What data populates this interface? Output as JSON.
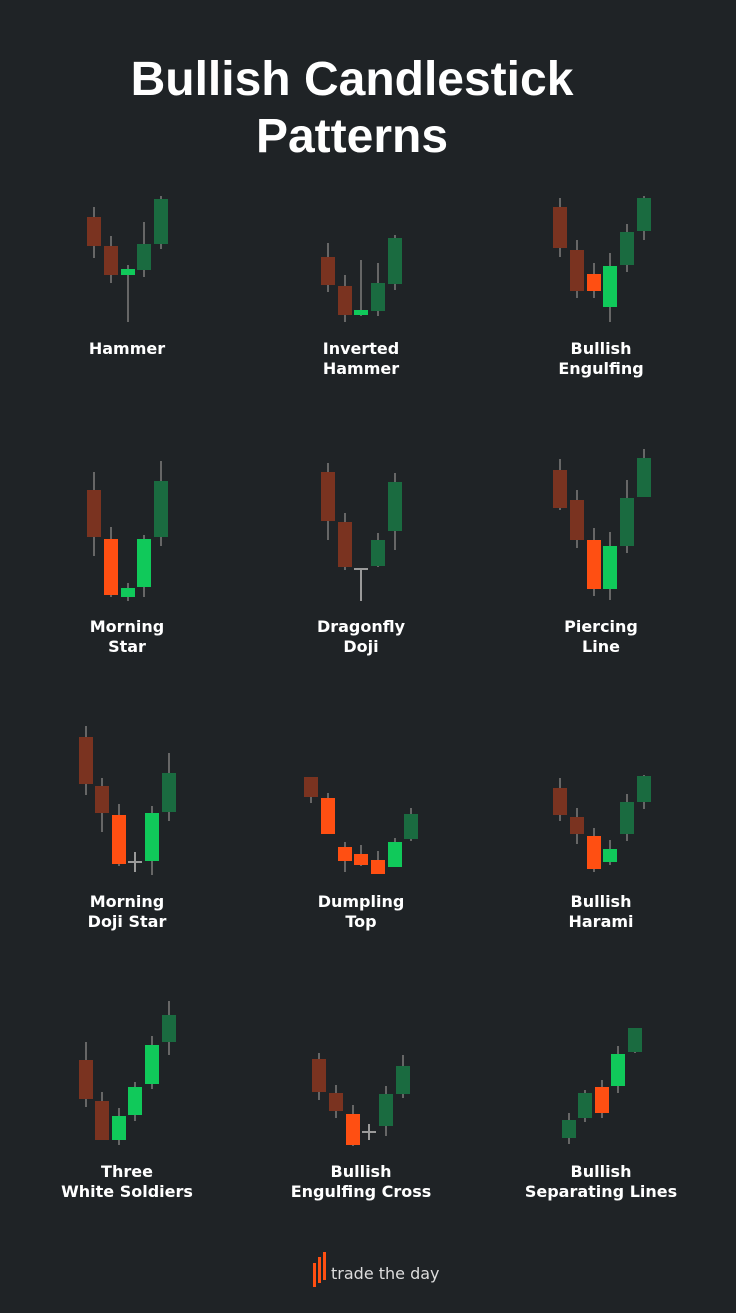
{
  "title": {
    "lines": [
      "Bullish Candlestick",
      "Patterns"
    ]
  },
  "patterns": [
    {
      "lines": [
        "Hammer"
      ]
    },
    {
      "lines": [
        "Inverted",
        "Hammer"
      ]
    },
    {
      "lines": [
        "Bullish",
        "Engulfing"
      ]
    },
    {
      "lines": [
        "Morning",
        "Star"
      ]
    },
    {
      "lines": [
        "Dragonfly",
        "Doji"
      ]
    },
    {
      "lines": [
        "Piercing",
        "Line"
      ]
    },
    {
      "lines": [
        "Morning",
        "Doji  Star"
      ]
    },
    {
      "lines": [
        "Dumpling",
        "Top"
      ]
    },
    {
      "lines": [
        "Bullish",
        "Harami"
      ]
    },
    {
      "lines": [
        "Three",
        "White Soldiers"
      ]
    },
    {
      "lines": [
        "Bullish",
        "Engulfing Cross"
      ]
    },
    {
      "lines": [
        "Bullish",
        "Separating Lines"
      ]
    }
  ],
  "brand": "trade the day"
}
